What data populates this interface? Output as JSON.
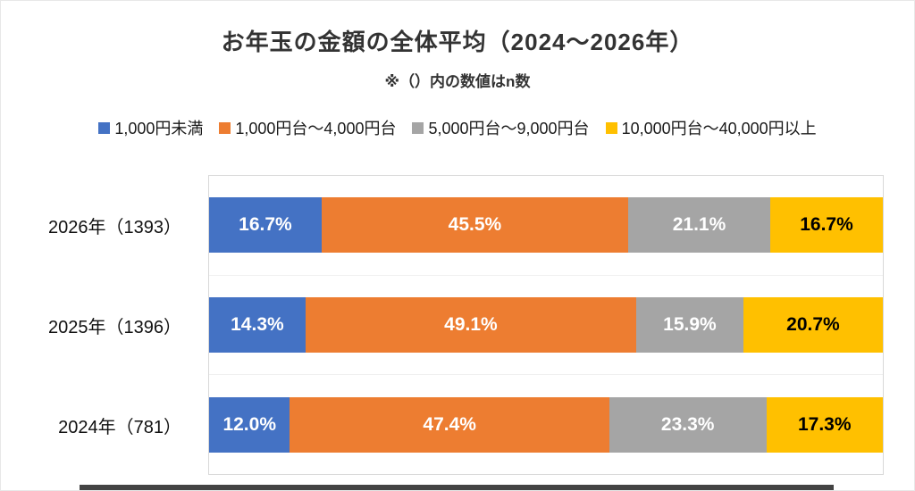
{
  "chart_data": {
    "type": "bar",
    "stacked": true,
    "orientation": "horizontal",
    "title": "お年玉の金額の全体平均（2024〜2026年）",
    "subtitle": "※（）内の数値はn数",
    "categories": [
      "2026年（1393）",
      "2025年（1396）",
      "2024年（781）"
    ],
    "series": [
      {
        "name": "1,000円未満",
        "color": "#4472C4",
        "label_color": "#FFFFFF",
        "values": [
          16.7,
          14.3,
          12.0
        ],
        "labels": [
          "16.7%",
          "14.3%",
          "12.0%"
        ]
      },
      {
        "name": "1,000円台〜4,000円台",
        "color": "#ED7D31",
        "label_color": "#FFFFFF",
        "values": [
          45.5,
          49.1,
          47.4
        ],
        "labels": [
          "45.5%",
          "49.1%",
          "47.4%"
        ]
      },
      {
        "name": "5,000円台〜9,000円台",
        "color": "#A5A5A5",
        "label_color": "#FFFFFF",
        "values": [
          21.1,
          15.9,
          23.3
        ],
        "labels": [
          "21.1%",
          "15.9%",
          "23.3%"
        ]
      },
      {
        "name": "10,000円台〜40,000円以上",
        "color": "#FFC000",
        "label_color": "#000000",
        "values": [
          16.7,
          20.7,
          17.3
        ],
        "labels": [
          "16.7%",
          "20.7%",
          "17.3%"
        ]
      }
    ],
    "xlim": [
      0,
      100
    ],
    "grid": false,
    "legend_position": "top"
  }
}
